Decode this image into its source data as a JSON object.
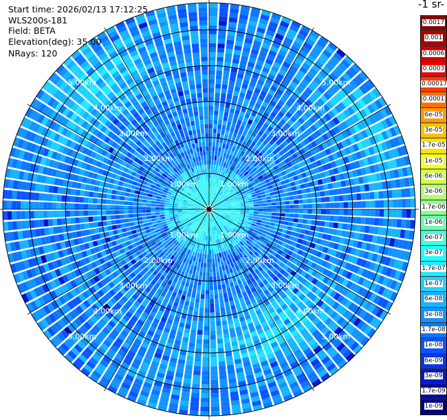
{
  "header": {
    "start_time": "Start time: 2026/02/13 17:12:25",
    "instrument": "WLS200s-181",
    "field": "Field: BETA",
    "elevation": "Elevation(deg): 35.00",
    "nrays": "NRays: 120"
  },
  "colorbar": {
    "title_visible": "-1 sr-",
    "labels": [
      "0.0017",
      "0.001",
      "0.0006",
      "0.0003",
      "0.00017",
      "0.0001",
      "6e-05",
      "3e-05",
      "1.7e-05",
      "1e-05",
      "6e-06",
      "3e-06",
      "1.7e-06",
      "1e-06",
      "6e-07",
      "3e-07",
      "1.7e-07",
      "1e-07",
      "6e-08",
      "3e-08",
      "1.7e-08",
      "1e-08",
      "6e-09",
      "3e-09",
      "1.7e-09",
      "1e-09"
    ],
    "colors": [
      "#8b0000",
      "#b00000",
      "#d40000",
      "#f00000",
      "#ff3b00",
      "#ff6f00",
      "#ff9a00",
      "#ffbf00",
      "#ffe000",
      "#f3ff24",
      "#d5ff45",
      "#b3ff6b",
      "#8eff90",
      "#6affb3",
      "#3dffd9",
      "#1affff",
      "#22eaff",
      "#1fd2ff",
      "#17b4ff",
      "#1295ff",
      "#0d77ff",
      "#0b55ff",
      "#0935e6",
      "#0618c8",
      "#030aa5",
      "#020480"
    ]
  },
  "chart_data": {
    "type": "heatmap",
    "projection": "polar-ppi",
    "field": "BETA",
    "elevation_deg": 35.0,
    "nrays": 120,
    "range_rings_km": [
      1,
      2,
      3,
      4,
      5
    ],
    "range_ring_labels": [
      "1.00km",
      "2.00km",
      "3.00km",
      "4.00km",
      "5.00km"
    ],
    "max_range_km": 5.75,
    "value_range": [
      1e-09,
      0.0017
    ],
    "scale": "log",
    "dominant_value_band": [
      1e-08,
      1e-07
    ],
    "near_range_band": [
      1.7e-07,
      1e-06
    ],
    "grid": true
  }
}
